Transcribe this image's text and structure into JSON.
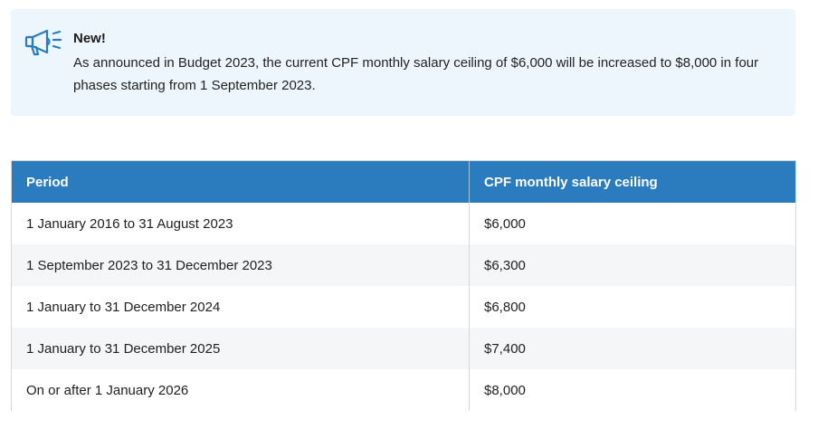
{
  "notice": {
    "icon": "megaphone-icon",
    "title": "New!",
    "body": "As announced in Budget 2023, the current CPF monthly salary ceiling of $6,000 will be increased to $8,000 in four phases starting from 1 September 2023."
  },
  "table": {
    "headers": [
      "Period",
      "CPF monthly salary ceiling"
    ],
    "rows": [
      [
        "1 January 2016 to 31 August 2023",
        "$6,000"
      ],
      [
        "1 September 2023 to 31 December 2023",
        "$6,300"
      ],
      [
        "1 January to 31 December 2024",
        "$6,800"
      ],
      [
        "1 January to 31 December 2025",
        "$7,400"
      ],
      [
        "On or after 1 January 2026",
        "$8,000"
      ]
    ]
  },
  "colors": {
    "notice_bg": "#edf6fd",
    "header_bg": "#2b7bbf",
    "icon_color": "#2b7bbf"
  }
}
